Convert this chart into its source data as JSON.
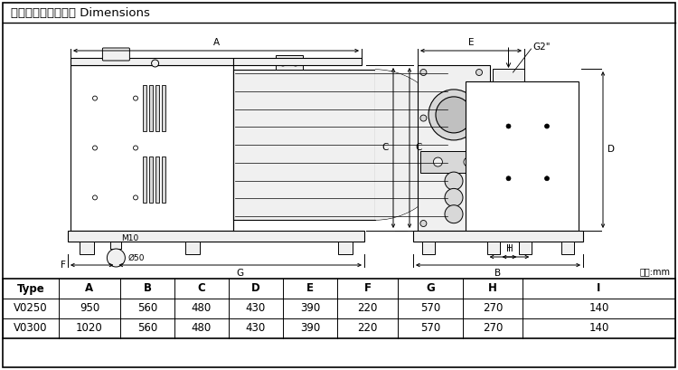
{
  "title": "外型尺寸及安装尺寸 Dimensions",
  "unit_label": "单位:mm",
  "table_headers": [
    "Type",
    "A",
    "B",
    "C",
    "D",
    "E",
    "F",
    "G",
    "H",
    "I"
  ],
  "table_data": [
    [
      "V0250",
      "950",
      "560",
      "480",
      "430",
      "390",
      "220",
      "570",
      "270",
      "140"
    ],
    [
      "V0300",
      "1020",
      "560",
      "480",
      "430",
      "390",
      "220",
      "570",
      "270",
      "140"
    ]
  ],
  "bg_color": "#ffffff",
  "line_color": "#000000",
  "gray_fill": "#f0f0f0",
  "mid_gray": "#d8d8d8",
  "dark_gray": "#c0c0c0",
  "font_size_title": 9.5,
  "font_size_table": 8.5,
  "font_size_dim": 7.5,
  "font_size_small": 6.5
}
